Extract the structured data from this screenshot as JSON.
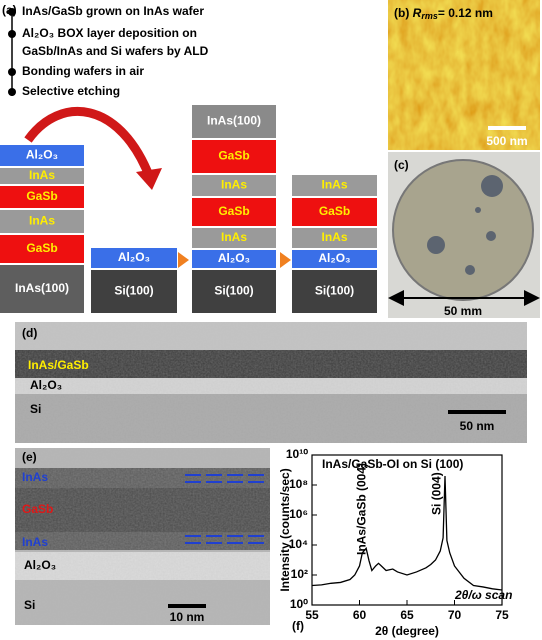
{
  "panel_a": {
    "label": "(a)",
    "steps": [
      [
        "InAs/GaSb grown on InAs wafer"
      ],
      [
        "Al₂O₃ BOX layer deposition on",
        "GaSb/InAs and Si wafers by ALD"
      ],
      [
        "Bonding wafers in air"
      ],
      [
        "Selective etching"
      ]
    ],
    "stacks": [
      [
        "Al₂O₃",
        "InAs",
        "GaSb",
        "InAs",
        "GaSb",
        "InAs(100)"
      ],
      [
        "Al₂O₃",
        "Si(100)"
      ],
      [
        "InAs(100)",
        "GaSb",
        "InAs",
        "GaSb",
        "InAs",
        "Al₂O₃",
        "Si(100)"
      ],
      [
        "InAs",
        "GaSb",
        "InAs",
        "Al₂O₃",
        "Si(100)"
      ]
    ]
  },
  "panel_b": {
    "label": "(b)",
    "symbol": "R",
    "subscript": "rms",
    "text": "= 0.12 nm",
    "scale_bar": "500 nm"
  },
  "panel_c": {
    "label": "(c)",
    "scale_bar": "50 mm"
  },
  "panel_d": {
    "label": "(d)",
    "layers": [
      "InAs/GaSb",
      "Al₂O₃",
      "Si"
    ],
    "scale_bar": "50 nm"
  },
  "panel_e": {
    "label": "(e)",
    "layers": [
      "InAs",
      "GaSb",
      "InAs",
      "Al₂O₃",
      "Si"
    ],
    "scale_bar": "10 nm"
  },
  "chart_data": {
    "type": "line",
    "label": "(f)",
    "title": "InAs/GaSb-OI on Si (100)",
    "xlabel": "2θ (degree)",
    "ylabel": "Intensity (counts/sec)",
    "yscale": "log",
    "color": "#000000",
    "annotations": [
      "InAs/GaSb (004)",
      "Si (004)",
      "2θ/ω scan"
    ],
    "x": [
      55,
      56,
      57,
      58,
      59,
      59.5,
      60,
      60.3,
      60.7,
      61,
      61.3,
      61.7,
      62,
      62.4,
      62.8,
      63.5,
      64,
      65,
      66,
      67,
      67.5,
      68,
      68.5,
      68.8,
      69,
      69.2,
      69.5,
      70,
      71,
      72,
      73,
      74,
      75
    ],
    "values": [
      20,
      22,
      28,
      32,
      50,
      100,
      400,
      3000,
      6000,
      900,
      200,
      400,
      600,
      350,
      200,
      250,
      160,
      100,
      160,
      300,
      500,
      1000,
      4000,
      30000,
      400000000,
      20000,
      3000,
      400,
      60,
      20,
      16,
      12,
      10
    ],
    "xlim": [
      55,
      75
    ],
    "xticks": [
      55,
      60,
      65,
      70,
      75
    ],
    "ylim": [
      1,
      10000000000
    ],
    "yticks": [
      {
        "value": 1,
        "label": "10⁰"
      },
      {
        "value": 100,
        "label": "10²"
      },
      {
        "value": 10000,
        "label": "10⁴"
      },
      {
        "value": 1000000,
        "label": "10⁶"
      },
      {
        "value": 100000000,
        "label": "10⁸"
      },
      {
        "value": 10000000000,
        "label": "10¹⁰"
      }
    ]
  }
}
